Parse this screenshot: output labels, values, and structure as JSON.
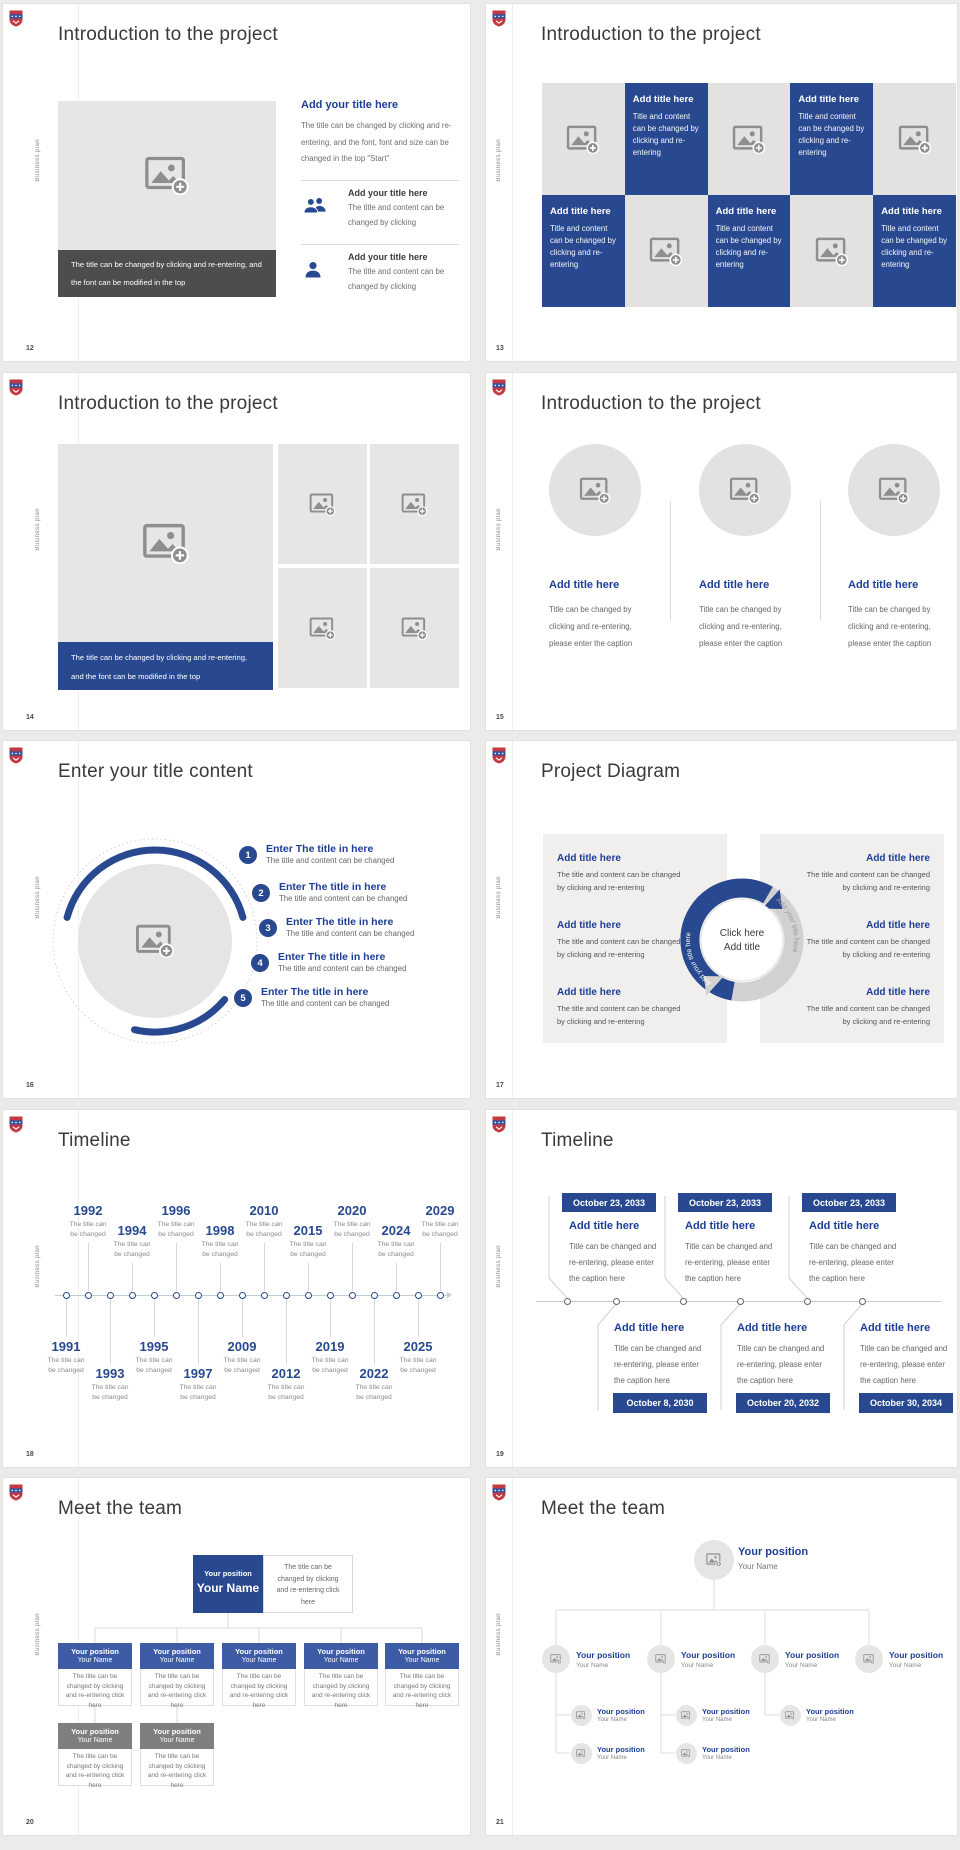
{
  "colors": {
    "brand": "#28498F",
    "heading": "#1D3E96",
    "tile_gray": "#E4E2E1",
    "placeholder_gray": "#E8E6E4",
    "dark_caption": "#4D4D4D",
    "org_header_blue": "#3E5CA6",
    "org_header_gray": "#7F7F7F",
    "logo_red": "#C23A42",
    "logo_blue": "#30519E"
  },
  "common": {
    "vertical_label": "Business plan"
  },
  "slides": [
    {
      "number": "12",
      "title": "Introduction to the project",
      "caption": "The title can be changed by clicking and re-entering, and the font can be modified in the top",
      "heading": "Add your title here",
      "paragraph": "The title can be changed by clicking and re-entering, and the font, font and size can be changed in the top \"Start\"",
      "items": [
        {
          "icon": "people",
          "title": "Add your title here",
          "body": "The title and content can be changed by clicking"
        },
        {
          "icon": "person",
          "title": "Add your title here",
          "body": "The title and content can be changed by clicking"
        }
      ]
    },
    {
      "number": "13",
      "title": "Introduction to the project",
      "tile_title": "Add title here",
      "tile_body": "Title and content can be changed by clicking and re-entering"
    },
    {
      "number": "14",
      "title": "Introduction to the project",
      "caption": "The title can be changed by clicking and re-entering, and the font can be modified in the top"
    },
    {
      "number": "15",
      "title": "Introduction to the project",
      "item_title": "Add title here",
      "item_body": "Title can be changed by clicking and re-entering, please enter the caption"
    },
    {
      "number": "16",
      "title": "Enter your title content",
      "items": [
        {
          "title": "Enter The title in here",
          "body": "The title and content can be changed"
        },
        {
          "title": "Enter The title in here",
          "body": "The title and content can be changed"
        },
        {
          "title": "Enter The title in here",
          "body": "The title and content can be changed"
        },
        {
          "title": "Enter The title in here",
          "body": "The title and content can be changed"
        },
        {
          "title": "Enter The title in here",
          "body": "The title and content can be changed"
        }
      ]
    },
    {
      "number": "17",
      "title": "Project Diagram",
      "center_line1": "Click here",
      "center_line2": "Add title",
      "arc_label": "Add your title here",
      "section_title": "Add title here",
      "section_body": "The title and content can be changed by clicking and re-entering"
    },
    {
      "number": "18",
      "title": "Timeline",
      "caption_line1": "The title can",
      "caption_line2": "be changed",
      "top_tier1": [
        "1992",
        "1996",
        "2010",
        "2020",
        "2029"
      ],
      "top_tier2": [
        "1994",
        "1998",
        "2015",
        "2024"
      ],
      "bottom_tier1": [
        "1991",
        "1995",
        "2009",
        "2019",
        "2025"
      ],
      "bottom_tier2": [
        "1993",
        "1997",
        "2012",
        "2022"
      ]
    },
    {
      "number": "19",
      "title": "Timeline",
      "item_title": "Add title here",
      "item_body": "Title can be changed and re-entering, please enter the caption here",
      "top_dates": [
        "October 23, 2033",
        "October 23, 2033",
        "October 23, 2033"
      ],
      "bottom_dates": [
        "October 8, 2030",
        "October 20, 2032",
        "October 30, 2034"
      ]
    },
    {
      "number": "20",
      "title": "Meet the team",
      "position": "Your position",
      "name": "Your Name",
      "note": "The title can be changed by clicking and re-entering click here",
      "box_body": "The title can be changed by clicking and re-entering click here"
    },
    {
      "number": "21",
      "title": "Meet the team",
      "position": "Your position",
      "name": "Your Name"
    }
  ]
}
